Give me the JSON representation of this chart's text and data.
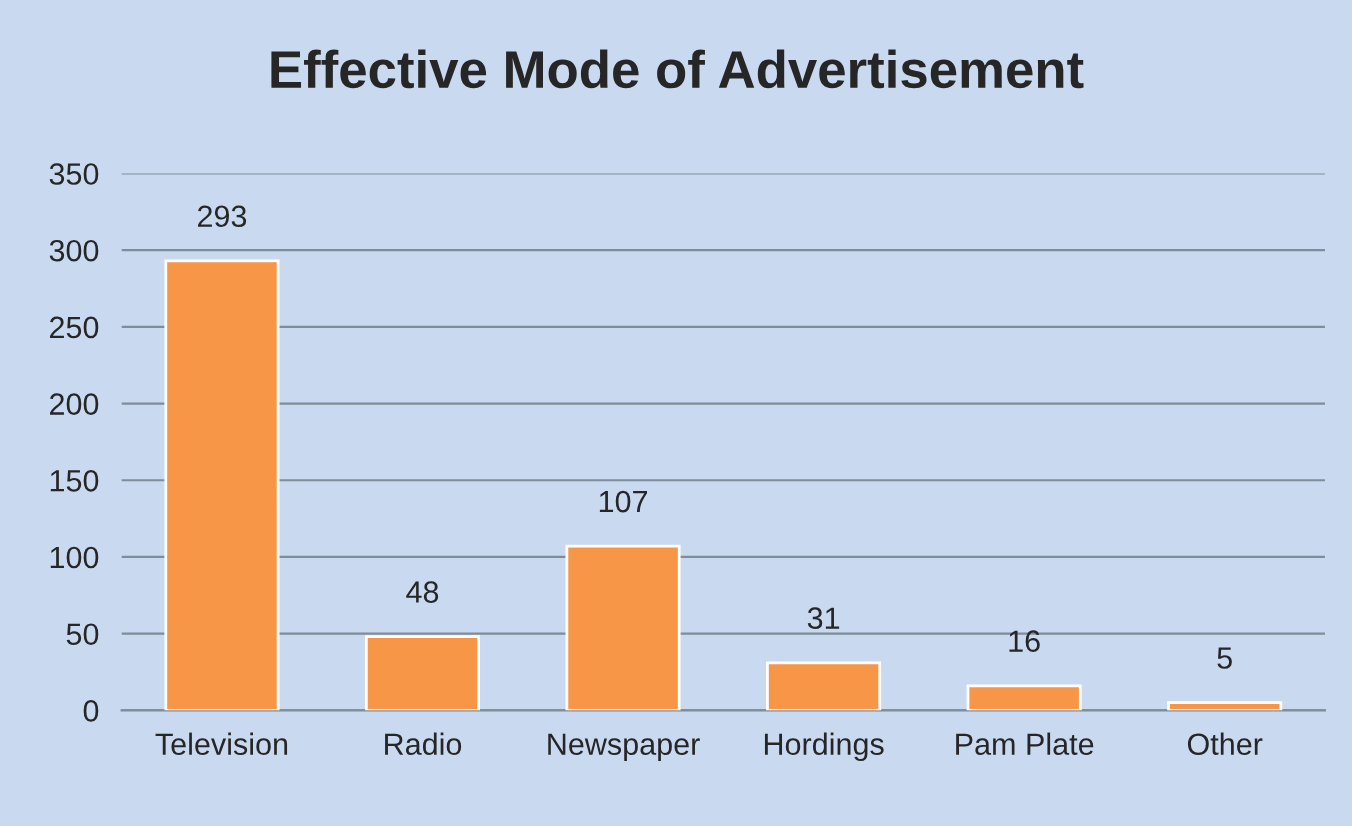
{
  "chart_data": {
    "type": "bar",
    "title": "Effective Mode of Advertisement",
    "categories": [
      "Television",
      "Radio",
      "Newspaper",
      "Hordings",
      "Pam Plate",
      "Other"
    ],
    "values": [
      293,
      48,
      107,
      31,
      16,
      5
    ],
    "color": "#f79646",
    "ylim": [
      0,
      350
    ],
    "yticks": [
      0,
      50,
      100,
      150,
      200,
      250,
      300,
      350
    ],
    "grid": "y",
    "data_labels": true
  }
}
